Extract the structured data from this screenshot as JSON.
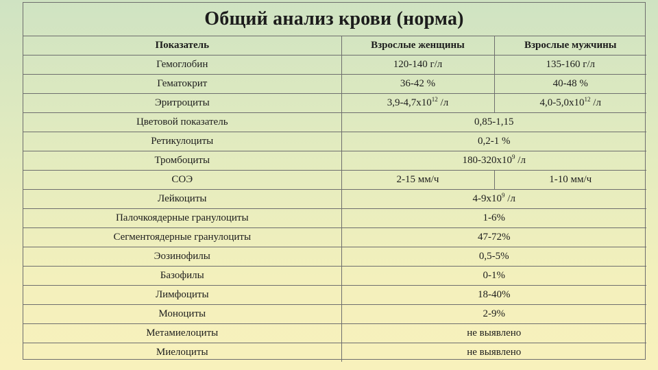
{
  "title": "Общий анализ крови (норма)",
  "header": {
    "col1": "Показатель",
    "col2": "Взрослые женщины",
    "col3": "Взрослые мужчины"
  },
  "rows": [
    {
      "name": "Гемоглобин",
      "women": "120-140 г/л",
      "men": "135-160 г/л"
    },
    {
      "name": "Гематокрит",
      "women": "36-42 %",
      "men": "40-48 %"
    },
    {
      "name": "Эритроциты",
      "women": {
        "pre": "3,9-4,7х10",
        "sup": "12",
        "post": " /л"
      },
      "men": {
        "pre": "4,0-5,0х10",
        "sup": "12",
        "post": " /л"
      }
    },
    {
      "name": "Цветовой показатель",
      "both": "0,85-1,15"
    },
    {
      "name": "Ретикулоциты",
      "both": "0,2-1 %"
    },
    {
      "name": "Тромбоциты",
      "both": {
        "pre": "180-320х10",
        "sup": "9",
        "post": " /л"
      }
    },
    {
      "name": "СОЭ",
      "women": "2-15 мм/ч",
      "men": "1-10 мм/ч"
    },
    {
      "name": "Лейкоциты",
      "both": {
        "pre": "4-9х10",
        "sup": "9",
        "post": " /л"
      }
    },
    {
      "name": "Палочкоядерные гранулоциты",
      "both": "1-6%"
    },
    {
      "name": "Сегментоядерные гранулоциты",
      "both": "47-72%"
    },
    {
      "name": "Эозинофилы",
      "both": "0,5-5%"
    },
    {
      "name": "Базофилы",
      "both": "0-1%"
    },
    {
      "name": "Лимфоциты",
      "both": "18-40%"
    },
    {
      "name": "Моноциты",
      "both": "2-9%"
    },
    {
      "name": "Метамиелоциты",
      "both": "не выявлено"
    },
    {
      "name": "Миелоциты",
      "both": "не выявлено"
    }
  ]
}
